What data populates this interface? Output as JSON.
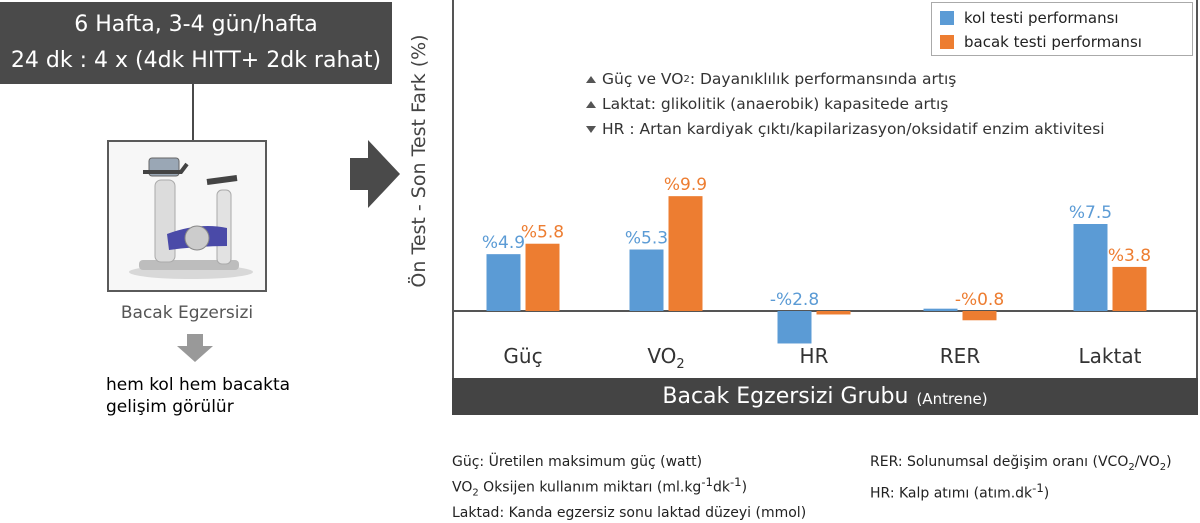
{
  "protocol": {
    "line1": "6 Hafta, 3-4 gün/hafta",
    "line2": "24 dk : 4 x (4dk HITT+ 2dk rahat)"
  },
  "exercise_caption": "Bacak Egzersizi",
  "result_text": {
    "line1": "hem kol hem bacakta",
    "line2": "gelişim görülür"
  },
  "notes": [
    {
      "direction": "up",
      "pre": "Güç ve VO",
      "sub": "2",
      "post": " : Dayanıklılık performansında artış"
    },
    {
      "direction": "up",
      "pre": "Laktat: glikolitik (anaerobik) kapasitede artış",
      "sub": "",
      "post": ""
    },
    {
      "direction": "down",
      "pre": "HR : Artan kardiyak çıktı/kapilarizasyon/oksidatif enzim aktivitesi",
      "sub": "",
      "post": ""
    }
  ],
  "group_bar": {
    "title": "Bacak Egzersizi Grubu",
    "subtitle": "(Antrene)"
  },
  "definitions_left": [
    {
      "pre": "Güç: Üretilen maksimum güç (watt)",
      "mid": "",
      "sup": "",
      "post": ""
    },
    {
      "pre": "VO",
      "sub": "2",
      "post": " Oksijen kullanım miktarı (ml.kg",
      "sup1": "-1",
      "post2": "dk",
      "sup2": "-1",
      "post3": ")"
    },
    {
      "pre": "Laktad: Kanda egzersiz sonu laktad düzeyi (mmol)"
    }
  ],
  "definitions_right": [
    {
      "pre": "RER: Solunumsal değişim oranı (VCO",
      "sub1": "2",
      "mid": "/VO",
      "sub2": "2",
      "post": ")"
    },
    {
      "pre": "HR: Kalp atımı (atım.dk",
      "sup": "-1",
      "post": ")"
    }
  ],
  "colors": {
    "arm": "#5b9bd5",
    "leg": "#ed7d31",
    "dark": "#4a4a4a"
  },
  "chart_data": {
    "type": "bar",
    "ylabel": "Ön Test - Son Test Fark (%)",
    "categories": [
      "Güç",
      "VO2",
      "HR",
      "RER",
      "Laktat"
    ],
    "series": [
      {
        "name": "kol testi performansı",
        "values": [
          4.9,
          5.3,
          -2.8,
          0.2,
          7.5
        ],
        "labels": [
          "%4.9",
          "%5.3",
          "-%2.8",
          "",
          "%7.5"
        ]
      },
      {
        "name": "bacak testi performansı",
        "values": [
          5.8,
          9.9,
          -0.3,
          -0.8,
          3.8
        ],
        "labels": [
          "%5.8",
          "%9.9",
          "",
          "-%0.8",
          "%3.8"
        ]
      }
    ],
    "ylim": [
      -3,
      12
    ],
    "grid": false,
    "legend": "top-right"
  }
}
